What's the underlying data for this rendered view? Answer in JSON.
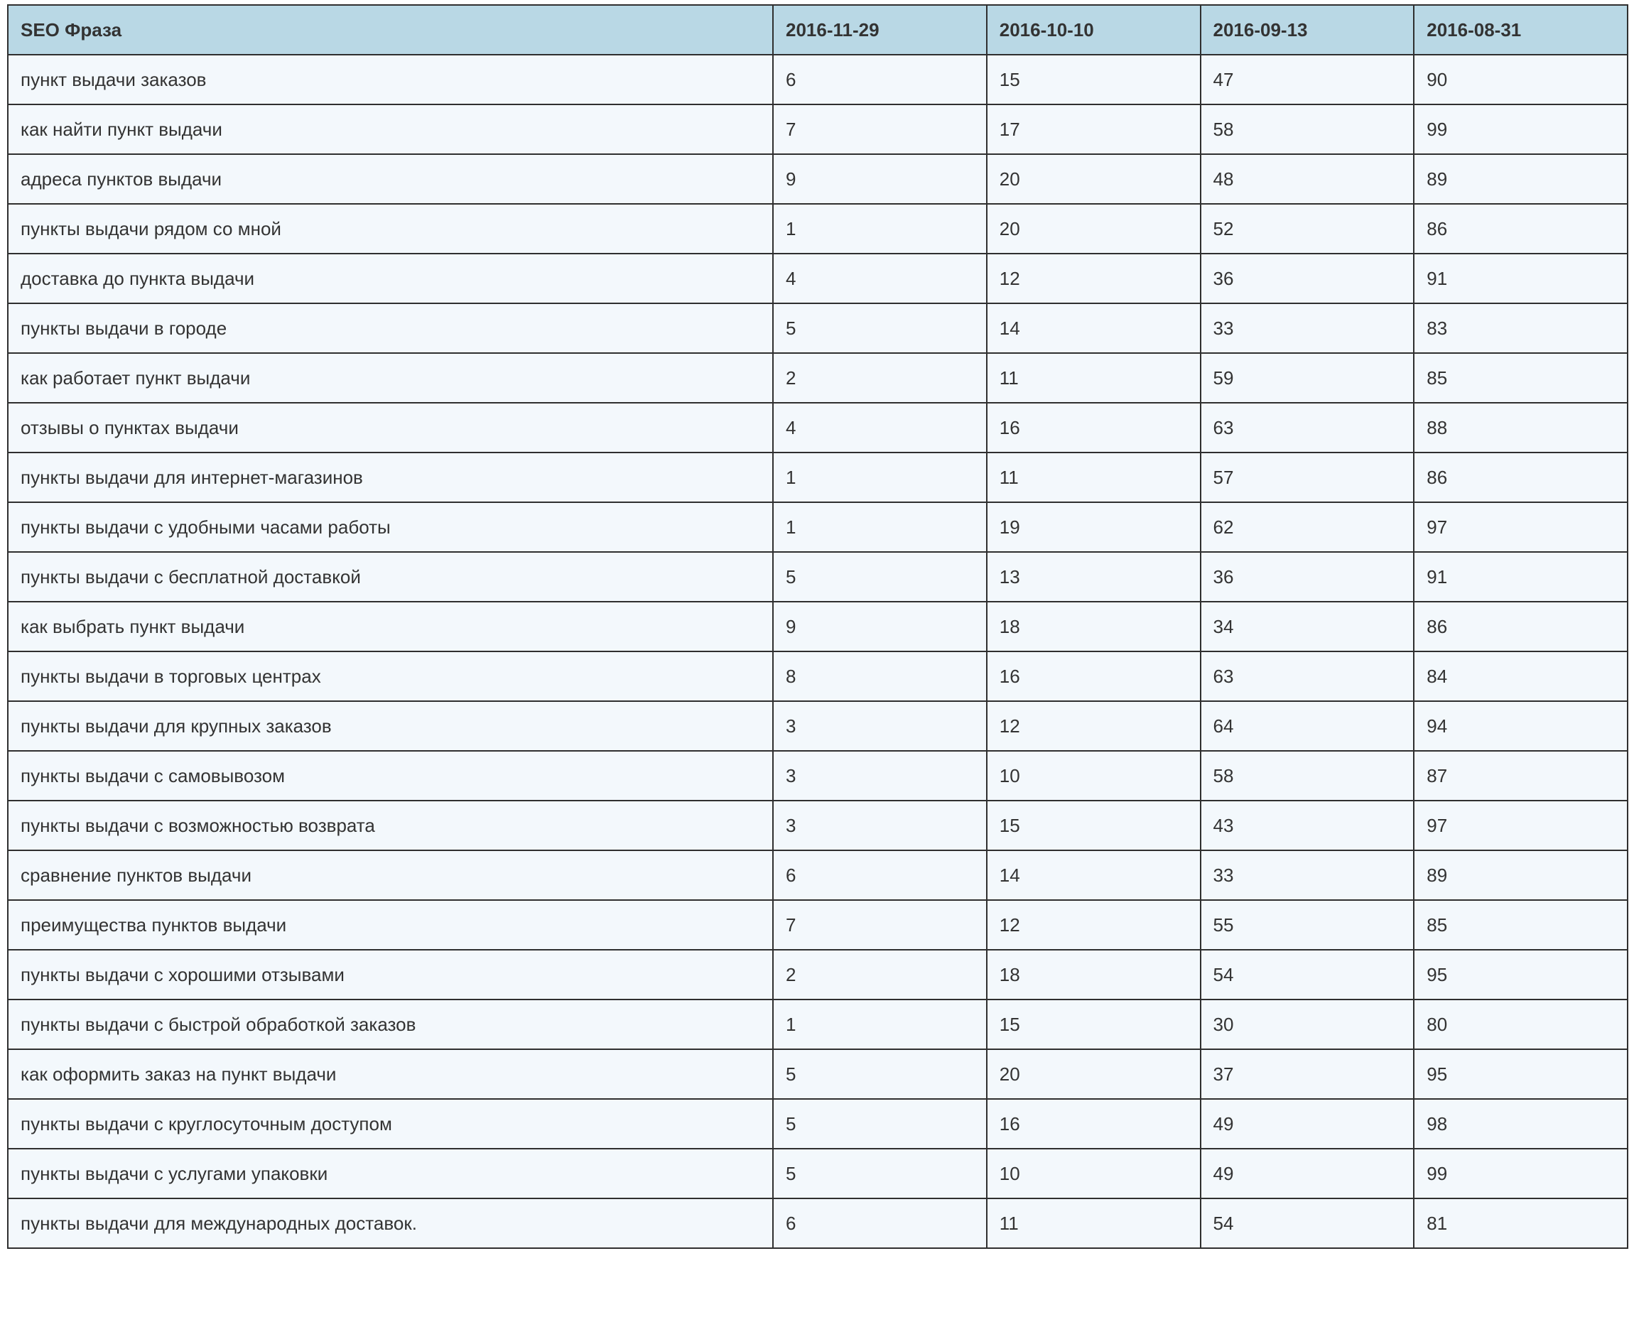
{
  "table": {
    "header": [
      "SEO Фраза",
      "2016-11-29",
      "2016-10-10",
      "2016-09-13",
      "2016-08-31"
    ],
    "rows": [
      [
        "пункт выдачи заказов",
        6,
        15,
        47,
        90
      ],
      [
        "как найти пункт выдачи",
        7,
        17,
        58,
        99
      ],
      [
        "адреса пунктов выдачи",
        9,
        20,
        48,
        89
      ],
      [
        "пункты выдачи рядом со мной",
        1,
        20,
        52,
        86
      ],
      [
        "доставка до пункта выдачи",
        4,
        12,
        36,
        91
      ],
      [
        "пункты выдачи в городе",
        5,
        14,
        33,
        83
      ],
      [
        "как работает пункт выдачи",
        2,
        11,
        59,
        85
      ],
      [
        "отзывы о пунктах выдачи",
        4,
        16,
        63,
        88
      ],
      [
        "пункты выдачи для интернет-магазинов",
        1,
        11,
        57,
        86
      ],
      [
        "пункты выдачи с удобными часами работы",
        1,
        19,
        62,
        97
      ],
      [
        "пункты выдачи с бесплатной доставкой",
        5,
        13,
        36,
        91
      ],
      [
        "как выбрать пункт выдачи",
        9,
        18,
        34,
        86
      ],
      [
        "пункты выдачи в торговых центрах",
        8,
        16,
        63,
        84
      ],
      [
        "пункты выдачи для крупных заказов",
        3,
        12,
        64,
        94
      ],
      [
        "пункты выдачи с самовывозом",
        3,
        10,
        58,
        87
      ],
      [
        "пункты выдачи с возможностью возврата",
        3,
        15,
        43,
        97
      ],
      [
        "сравнение пунктов выдачи",
        6,
        14,
        33,
        89
      ],
      [
        "преимущества пунктов выдачи",
        7,
        12,
        55,
        85
      ],
      [
        "пункты выдачи с хорошими отзывами",
        2,
        18,
        54,
        95
      ],
      [
        "пункты выдачи с быстрой обработкой заказов",
        1,
        15,
        30,
        80
      ],
      [
        "как оформить заказ на пункт выдачи",
        5,
        20,
        37,
        95
      ],
      [
        "пункты выдачи с круглосуточным доступом",
        5,
        16,
        49,
        98
      ],
      [
        "пункты выдачи с услугами упаковки",
        5,
        10,
        49,
        99
      ],
      [
        "пункты выдачи для международных доставок.",
        6,
        11,
        54,
        81
      ]
    ]
  }
}
